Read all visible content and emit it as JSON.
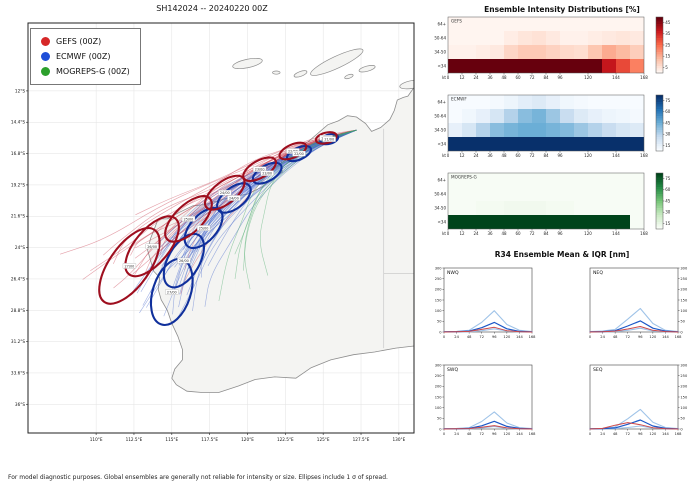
{
  "header": {
    "map_title": "SH142024 -- 20240220 00Z"
  },
  "legend": {
    "items": [
      {
        "label": "GEFS (00Z)",
        "color": "#d62728"
      },
      {
        "label": "ECMWF (00Z)",
        "color": "#1f4fd8"
      },
      {
        "label": "MOGREPS-G (00Z)",
        "color": "#2ca02c"
      }
    ]
  },
  "titles": {
    "intensity": "Ensemble Intensity Distributions [%]",
    "r34": "R34 Ensemble Mean & IQR [nm]"
  },
  "footer": {
    "note": "For model diagnostic purposes. Global ensembles are generally not reliable for intensity or size. Ellipses include 1 σ of spread."
  },
  "map": {
    "lon_ticks": [
      {
        "v": 110,
        "label": "110°E"
      },
      {
        "v": 112.5,
        "label": "112.5°E"
      },
      {
        "v": 115,
        "label": "115°E"
      },
      {
        "v": 117.5,
        "label": "117.5°E"
      },
      {
        "v": 120,
        "label": "120°E"
      },
      {
        "v": 122.5,
        "label": "122.5°E"
      },
      {
        "v": 125,
        "label": "125°E"
      },
      {
        "v": 127.5,
        "label": "127.5°E"
      },
      {
        "v": 130,
        "label": "130°E"
      }
    ],
    "lat_ticks": [
      {
        "v": 12,
        "label": "12°S"
      },
      {
        "v": 14.4,
        "label": "14.4°S"
      },
      {
        "v": 16.8,
        "label": "16.8°S"
      },
      {
        "v": 19.2,
        "label": "19.2°S"
      },
      {
        "v": 21.6,
        "label": "21.6°S"
      },
      {
        "v": 24,
        "label": "24°S"
      },
      {
        "v": 26.4,
        "label": "26.4°S"
      },
      {
        "v": 28.8,
        "label": "28.8°S"
      },
      {
        "v": 31.2,
        "label": "31.2°S"
      },
      {
        "v": 33.6,
        "label": "33.6°S"
      },
      {
        "v": 36,
        "label": "36°S"
      }
    ]
  },
  "chart_data": [
    {
      "id": "hm_gefs",
      "type": "heatmap",
      "title": "GEFS",
      "x_range": [
        0,
        168
      ],
      "x_bin_hours": 12,
      "x_ticks_shown": [
        0,
        12,
        24,
        36,
        48,
        60,
        72,
        84,
        96,
        120,
        144,
        168
      ],
      "y_categories": [
        "64+",
        "50-64",
        "34-50",
        "<34"
      ],
      "ylabel": "kt",
      "colormap": "reds",
      "scale_max": 60,
      "colorbar_ticks": [
        45,
        35,
        25,
        15,
        5
      ],
      "values": {
        "64+": [
          0,
          0,
          0,
          0,
          0,
          0,
          0,
          0,
          0,
          0,
          0,
          0,
          0,
          0
        ],
        "50-64": [
          0,
          0,
          0,
          0,
          2,
          4,
          5,
          3,
          1,
          1,
          2,
          3,
          4,
          3
        ],
        "34-50": [
          1,
          1,
          2,
          3,
          8,
          11,
          11,
          9,
          7,
          6,
          12,
          18,
          15,
          10
        ],
        "<34": [
          99,
          99,
          98,
          97,
          95,
          94,
          94,
          93,
          92,
          91,
          62,
          46,
          36,
          26
        ]
      }
    },
    {
      "id": "hm_ecmwf",
      "type": "heatmap",
      "title": "ECMWF",
      "x_range": [
        0,
        168
      ],
      "x_bin_hours": 12,
      "x_ticks_shown": [
        0,
        12,
        24,
        36,
        48,
        60,
        72,
        84,
        96,
        120,
        144,
        168
      ],
      "y_categories": [
        "64+",
        "50-64",
        "34-50",
        "<34"
      ],
      "ylabel": "kt",
      "colormap": "blues",
      "scale_max": 60,
      "colorbar_ticks": [
        75,
        60,
        45,
        30,
        15
      ],
      "values": {
        "64+": [
          0,
          0,
          0,
          1,
          3,
          6,
          8,
          5,
          2,
          1,
          0,
          0,
          0,
          0
        ],
        "50-64": [
          0,
          2,
          5,
          10,
          18,
          25,
          28,
          22,
          14,
          8,
          5,
          3,
          2,
          1
        ],
        "34-50": [
          5,
          10,
          18,
          25,
          28,
          30,
          30,
          28,
          26,
          22,
          18,
          14,
          10,
          8
        ],
        "<34": [
          92,
          86,
          78,
          72,
          68,
          66,
          66,
          68,
          70,
          73,
          76,
          79,
          81,
          83
        ]
      }
    },
    {
      "id": "hm_mogreps",
      "type": "heatmap",
      "title": "MOGREPS-G",
      "x_range": [
        0,
        168
      ],
      "x_bin_hours": 12,
      "x_ticks_shown": [
        0,
        12,
        24,
        36,
        48,
        60,
        72,
        84,
        96,
        120,
        144,
        168
      ],
      "y_categories": [
        "64+",
        "50-64",
        "34-50",
        "<34"
      ],
      "ylabel": "kt",
      "colormap": "greens",
      "scale_max": 60,
      "colorbar_ticks": [
        75,
        60,
        45,
        30,
        15
      ],
      "values": {
        "64+": [
          0,
          0,
          0,
          0,
          0,
          0,
          0,
          0,
          0,
          0,
          0,
          0,
          0,
          0
        ],
        "50-64": [
          0,
          0,
          0,
          0,
          0,
          0,
          0,
          0,
          0,
          0,
          0,
          0,
          0,
          0
        ],
        "34-50": [
          0,
          0,
          1,
          1,
          2,
          2,
          2,
          1,
          1,
          0,
          0,
          0,
          0,
          0
        ],
        "<34": [
          97,
          97,
          97,
          96,
          96,
          96,
          96,
          96,
          96,
          96,
          96,
          96,
          96,
          0
        ]
      }
    },
    {
      "id": "r34_nwq",
      "type": "line",
      "title": "NWQ",
      "x": [
        0,
        24,
        48,
        72,
        96,
        120,
        144,
        168
      ],
      "ylim": [
        0,
        300
      ],
      "yticks": [
        0,
        50,
        100,
        150,
        200,
        250,
        300
      ],
      "series": [
        {
          "name": "ECMWF IQR high",
          "color": "#9fc3e8",
          "width": 1.1,
          "values": [
            2,
            3,
            8,
            45,
            100,
            35,
            8,
            2
          ]
        },
        {
          "name": "ECMWF IQR low",
          "color": "#9fc3e8",
          "width": 1.1,
          "values": [
            0,
            0,
            1,
            6,
            15,
            4,
            1,
            0
          ]
        },
        {
          "name": "ECMWF mean",
          "color": "#1c57c7",
          "width": 1.2,
          "values": [
            1,
            2,
            4,
            20,
            45,
            15,
            3,
            1
          ]
        },
        {
          "name": "GEFS mean",
          "color": "#cf4848",
          "width": 1.0,
          "values": [
            0,
            1,
            3,
            12,
            22,
            6,
            1,
            0
          ]
        }
      ]
    },
    {
      "id": "r34_neq",
      "type": "line",
      "title": "NEQ",
      "x": [
        0,
        24,
        48,
        72,
        96,
        120,
        144,
        168
      ],
      "ylim": [
        0,
        300
      ],
      "yticks": [
        0,
        50,
        100,
        150,
        200,
        250,
        300
      ],
      "series": [
        {
          "name": "ECMWF IQR high",
          "color": "#9fc3e8",
          "width": 1.1,
          "values": [
            2,
            4,
            12,
            60,
            110,
            40,
            8,
            2
          ]
        },
        {
          "name": "ECMWF IQR low",
          "color": "#9fc3e8",
          "width": 1.1,
          "values": [
            0,
            0,
            2,
            8,
            18,
            5,
            1,
            0
          ]
        },
        {
          "name": "ECMWF mean",
          "color": "#1c57c7",
          "width": 1.2,
          "values": [
            1,
            2,
            6,
            28,
            52,
            18,
            4,
            1
          ]
        },
        {
          "name": "GEFS mean",
          "color": "#cf4848",
          "width": 1.0,
          "values": [
            0,
            1,
            4,
            14,
            26,
            8,
            2,
            0
          ]
        }
      ]
    },
    {
      "id": "r34_swq",
      "type": "line",
      "title": "SWQ",
      "x": [
        0,
        24,
        48,
        72,
        96,
        120,
        144,
        168
      ],
      "ylim": [
        0,
        300
      ],
      "yticks": [
        0,
        50,
        100,
        150,
        200,
        250,
        300
      ],
      "series": [
        {
          "name": "ECMWF IQR high",
          "color": "#9fc3e8",
          "width": 1.1,
          "values": [
            2,
            3,
            6,
            35,
            80,
            28,
            6,
            2
          ]
        },
        {
          "name": "ECMWF IQR low",
          "color": "#9fc3e8",
          "width": 1.1,
          "values": [
            0,
            0,
            1,
            5,
            12,
            3,
            1,
            0
          ]
        },
        {
          "name": "ECMWF mean",
          "color": "#1c57c7",
          "width": 1.2,
          "values": [
            1,
            1,
            3,
            15,
            36,
            12,
            3,
            1
          ]
        },
        {
          "name": "GEFS mean",
          "color": "#cf4848",
          "width": 1.0,
          "values": [
            0,
            1,
            2,
            8,
            16,
            5,
            1,
            0
          ]
        }
      ]
    },
    {
      "id": "r34_seq",
      "type": "line",
      "title": "SEQ",
      "x": [
        0,
        24,
        48,
        72,
        96,
        120,
        144,
        168
      ],
      "ylim": [
        0,
        300
      ],
      "yticks": [
        0,
        50,
        100,
        150,
        200,
        250,
        300
      ],
      "series": [
        {
          "name": "ECMWF IQR high",
          "color": "#9fc3e8",
          "width": 1.1,
          "values": [
            2,
            3,
            10,
            48,
            92,
            32,
            7,
            2
          ]
        },
        {
          "name": "ECMWF IQR low",
          "color": "#9fc3e8",
          "width": 1.1,
          "values": [
            0,
            1,
            2,
            7,
            14,
            4,
            1,
            0
          ]
        },
        {
          "name": "ECMWF mean",
          "color": "#1c57c7",
          "width": 1.2,
          "values": [
            1,
            2,
            5,
            22,
            42,
            14,
            3,
            1
          ]
        },
        {
          "name": "GEFS mean",
          "color": "#cf4848",
          "width": 1.0,
          "values": [
            0,
            3,
            18,
            30,
            20,
            6,
            1,
            0
          ]
        }
      ]
    },
    {
      "id": "map_tracks",
      "type": "map-tracks",
      "models": [
        {
          "name": "GEFS",
          "color": "#9e0e1e",
          "thin_color": "#cc4455",
          "members": 21,
          "spread": 1.8,
          "mean_path": [
            [
              127.2,
              15.0
            ],
            [
              125.2,
              15.6
            ],
            [
              123.0,
              16.6
            ],
            [
              120.8,
              18.0
            ],
            [
              118.5,
              19.8
            ],
            [
              116.1,
              21.8
            ],
            [
              113.7,
              23.9
            ],
            [
              112.2,
              25.4
            ]
          ],
          "ellipses": [
            {
              "c": [
                125.2,
                15.6
              ],
              "rx": 0.7,
              "ry": 0.4,
              "rot": -15,
              "label": "21/00"
            },
            {
              "c": [
                123.0,
                16.6
              ],
              "rx": 0.95,
              "ry": 0.5,
              "rot": -24,
              "label": "22/00"
            },
            {
              "c": [
                120.8,
                18.0
              ],
              "rx": 1.2,
              "ry": 0.65,
              "rot": -30,
              "label": "23/00"
            },
            {
              "c": [
                118.5,
                19.8
              ],
              "rx": 1.55,
              "ry": 0.85,
              "rot": -38,
              "label": "24/00"
            },
            {
              "c": [
                116.1,
                21.8
              ],
              "rx": 1.95,
              "ry": 1.05,
              "rot": -44,
              "label": "25/00"
            },
            {
              "c": [
                113.7,
                23.9
              ],
              "rx": 2.4,
              "ry": 1.3,
              "rot": -50,
              "label": "26/00"
            },
            {
              "c": [
                112.2,
                25.4
              ],
              "rx": 2.9,
              "ry": 1.55,
              "rot": -55,
              "label": "27/00"
            }
          ]
        },
        {
          "name": "ECMWF",
          "color": "#10309c",
          "thin_color": "#4466cc",
          "members": 35,
          "spread": 1.3,
          "mean_path": [
            [
              127.2,
              15.0
            ],
            [
              125.4,
              15.7
            ],
            [
              123.4,
              16.8
            ],
            [
              121.3,
              18.3
            ],
            [
              119.1,
              20.2
            ],
            [
              117.1,
              22.5
            ],
            [
              115.8,
              25.0
            ],
            [
              115.0,
              27.4
            ]
          ],
          "ellipses": [
            {
              "c": [
                125.4,
                15.7
              ],
              "rx": 0.6,
              "ry": 0.35,
              "rot": -15,
              "label": "21/00"
            },
            {
              "c": [
                123.4,
                16.8
              ],
              "rx": 0.85,
              "ry": 0.45,
              "rot": -24,
              "label": "22/00"
            },
            {
              "c": [
                121.3,
                18.3
              ],
              "rx": 1.05,
              "ry": 0.6,
              "rot": -30,
              "label": "23/00"
            },
            {
              "c": [
                119.1,
                20.2
              ],
              "rx": 1.3,
              "ry": 0.8,
              "rot": -38,
              "label": "24/00"
            },
            {
              "c": [
                117.1,
                22.5
              ],
              "rx": 1.6,
              "ry": 1.0,
              "rot": -48,
              "label": "25/00"
            },
            {
              "c": [
                115.8,
                25.0
              ],
              "rx": 1.95,
              "ry": 1.2,
              "rot": -60,
              "label": "26/00"
            },
            {
              "c": [
                115.0,
                27.4
              ],
              "rx": 2.25,
              "ry": 1.45,
              "rot": -72,
              "label": "27/00"
            }
          ]
        },
        {
          "name": "MOGREPS-G",
          "color": "#0d7a34",
          "thin_color": "#44aa66",
          "members": 6,
          "spread": 1.0,
          "mean_path": [
            [
              127.2,
              15.0
            ],
            [
              125.7,
              15.5
            ],
            [
              124.0,
              16.4
            ],
            [
              122.4,
              17.8
            ],
            [
              121.1,
              19.6
            ],
            [
              120.3,
              21.8
            ],
            [
              119.9,
              24.5
            ],
            [
              120.1,
              27.5
            ]
          ],
          "ellipses": []
        }
      ]
    }
  ]
}
